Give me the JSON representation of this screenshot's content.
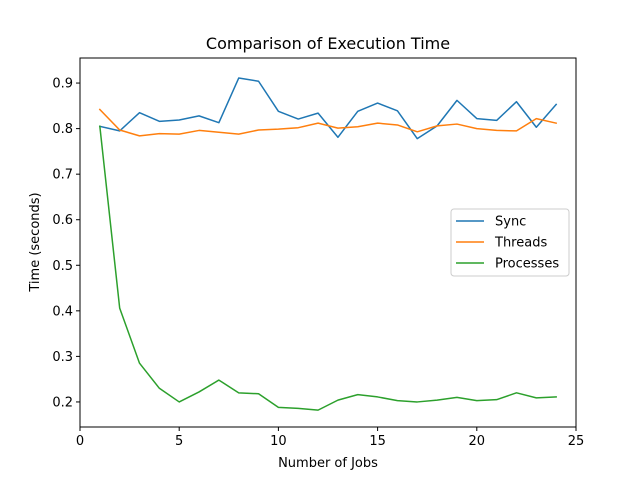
{
  "chart_data": {
    "type": "line",
    "title": "Comparison of Execution Time",
    "xlabel": "Number of Jobs",
    "ylabel": "Time (seconds)",
    "xlim": [
      0,
      25
    ],
    "ylim": [
      0.145,
      0.955
    ],
    "xticks": [
      0,
      5,
      10,
      15,
      20,
      25
    ],
    "yticks": [
      0.2,
      0.3,
      0.4,
      0.5,
      0.6,
      0.7,
      0.8,
      0.9
    ],
    "grid": false,
    "legend_position": "center-right",
    "x": [
      1,
      2,
      3,
      4,
      5,
      6,
      7,
      8,
      9,
      10,
      11,
      12,
      13,
      14,
      15,
      16,
      17,
      18,
      19,
      20,
      21,
      22,
      23,
      24
    ],
    "series": [
      {
        "name": "Sync",
        "color": "#1f77b4",
        "values": [
          0.805,
          0.795,
          0.835,
          0.816,
          0.819,
          0.828,
          0.813,
          0.911,
          0.904,
          0.838,
          0.821,
          0.834,
          0.781,
          0.838,
          0.856,
          0.839,
          0.778,
          0.806,
          0.862,
          0.822,
          0.818,
          0.859,
          0.803,
          0.853
        ]
      },
      {
        "name": "Threads",
        "color": "#ff7f0e",
        "values": [
          0.842,
          0.797,
          0.784,
          0.789,
          0.788,
          0.796,
          0.792,
          0.788,
          0.797,
          0.799,
          0.802,
          0.812,
          0.801,
          0.804,
          0.812,
          0.808,
          0.793,
          0.806,
          0.81,
          0.8,
          0.796,
          0.795,
          0.822,
          0.812
        ]
      },
      {
        "name": "Processes",
        "color": "#2ca02c",
        "values": [
          0.805,
          0.406,
          0.285,
          0.23,
          0.2,
          0.222,
          0.248,
          0.22,
          0.218,
          0.188,
          0.186,
          0.182,
          0.204,
          0.216,
          0.211,
          0.203,
          0.2,
          0.204,
          0.21,
          0.203,
          0.205,
          0.22,
          0.209,
          0.211
        ]
      }
    ]
  }
}
